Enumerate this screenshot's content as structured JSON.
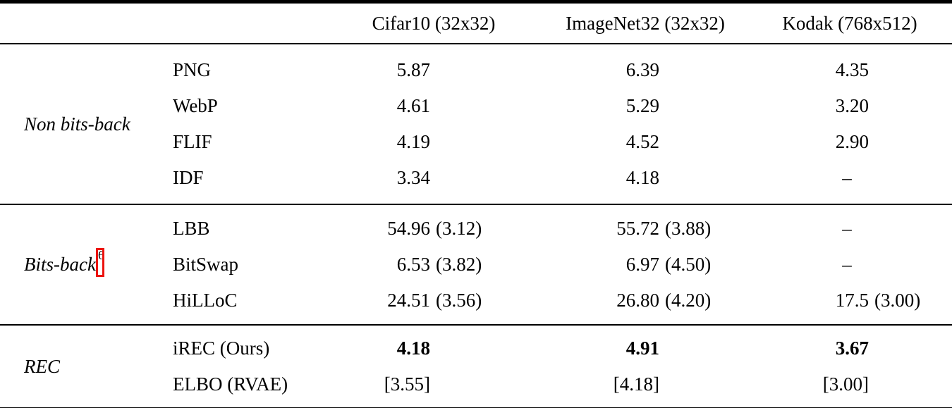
{
  "table": {
    "columns": [
      "Cifar10 (32x32)",
      "ImageNet32 (32x32)",
      "Kodak (768x512)"
    ],
    "footnote_box_color": "#ec130e",
    "groups": [
      {
        "label": "Non bits-back",
        "rows": [
          {
            "method": "PNG",
            "cells": [
              {
                "main": "5.87"
              },
              {
                "main": "6.39"
              },
              {
                "main": "4.35"
              }
            ]
          },
          {
            "method": "WebP",
            "cells": [
              {
                "main": "4.61"
              },
              {
                "main": "5.29"
              },
              {
                "main": "3.20"
              }
            ]
          },
          {
            "method": "FLIF",
            "cells": [
              {
                "main": "4.19"
              },
              {
                "main": "4.52"
              },
              {
                "main": "2.90"
              }
            ]
          },
          {
            "method": "IDF",
            "cells": [
              {
                "main": "3.34"
              },
              {
                "main": "4.18"
              },
              {
                "main": "–",
                "style": "dash"
              }
            ]
          }
        ]
      },
      {
        "label": "Bits-back",
        "footnote": "6",
        "rows": [
          {
            "method": "LBB",
            "cells": [
              {
                "main": "54.96",
                "paren": "(3.12)"
              },
              {
                "main": "55.72",
                "paren": "(3.88)"
              },
              {
                "main": "–",
                "style": "dash"
              }
            ]
          },
          {
            "method": "BitSwap",
            "cells": [
              {
                "main": "6.53",
                "paren": "(3.82)"
              },
              {
                "main": "6.97",
                "paren": "(4.50)"
              },
              {
                "main": "–",
                "style": "dash"
              }
            ]
          },
          {
            "method": "HiLLoC",
            "cells": [
              {
                "main": "24.51",
                "paren": "(3.56)"
              },
              {
                "main": "26.80",
                "paren": "(4.20)"
              },
              {
                "main": "17.5",
                "paren": "(3.00)"
              }
            ]
          }
        ]
      },
      {
        "label": "REC",
        "rows": [
          {
            "method": "iREC (Ours)",
            "cells": [
              {
                "main": "4.18",
                "style": "bold"
              },
              {
                "main": "4.91",
                "style": "bold"
              },
              {
                "main": "3.67",
                "style": "bold"
              }
            ]
          },
          {
            "method": "ELBO (RVAE)",
            "cells": [
              {
                "main": "[3.55]"
              },
              {
                "main": "[4.18]"
              },
              {
                "main": "[3.00]"
              }
            ]
          }
        ]
      }
    ]
  }
}
